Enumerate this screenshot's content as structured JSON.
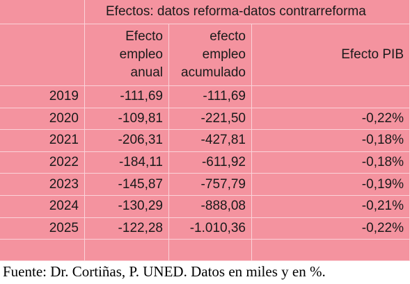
{
  "header": {
    "title": "Efectos: datos reforma-datos contrarreforma"
  },
  "table": {
    "columns": [
      [
        "Efecto",
        "empleo",
        "anual"
      ],
      [
        "efecto",
        "empleo",
        "acumulado"
      ],
      [
        "Efecto PIB"
      ]
    ],
    "rows": [
      [
        "2019",
        "-111,69",
        "-111,69"
      ],
      [
        "2020",
        "-109,81",
        "-221,50",
        "-0,22%"
      ],
      [
        "2021",
        "-206,31",
        "-427,81",
        "-0,18%"
      ],
      [
        "2022",
        "-184,11",
        "-611,92",
        "-0,18%"
      ],
      [
        "2023",
        "-145,87",
        "-757,79",
        "-0,19%"
      ],
      [
        "2024",
        "-130,29",
        "-888,08",
        "-0,21%"
      ],
      [
        "2025",
        "-122,28",
        "-1.010,36",
        "-0,22%"
      ]
    ]
  },
  "footer": "Fuente: Dr. Cortiñas, P. UNED. Datos en miles y en %."
}
